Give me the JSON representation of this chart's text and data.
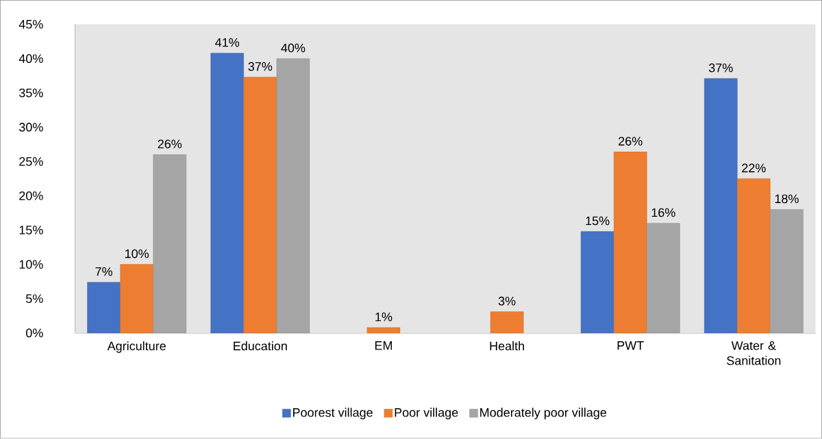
{
  "chart_data": {
    "type": "bar",
    "categories": [
      "Agriculture",
      "Education",
      "EM",
      "Health",
      "PWT",
      "Water & Sanitation"
    ],
    "series": [
      {
        "name": "Poorest village",
        "color": "#4472c4",
        "values": [
          7.4,
          40.8,
          null,
          null,
          14.8,
          37.1
        ],
        "value_labels": [
          "7%",
          "41%",
          null,
          null,
          "15%",
          "37%"
        ]
      },
      {
        "name": "Poor village",
        "color": "#ed7d31",
        "values": [
          10.0,
          37.3,
          0.8,
          3.1,
          26.4,
          22.5
        ],
        "value_labels": [
          "10%",
          "37%",
          "1%",
          "3%",
          "26%",
          "22%"
        ]
      },
      {
        "name": "Moderately poor village",
        "color": "#a5a5a5",
        "values": [
          26.0,
          40.0,
          null,
          null,
          16.0,
          18.0
        ],
        "value_labels": [
          "26%",
          "40%",
          null,
          null,
          "16%",
          "18%"
        ]
      }
    ],
    "ylim": [
      0,
      45
    ],
    "yticks": [
      {
        "value": 0,
        "label": "0%"
      },
      {
        "value": 5,
        "label": "5%"
      },
      {
        "value": 10,
        "label": "10%"
      },
      {
        "value": 15,
        "label": "15%"
      },
      {
        "value": 20,
        "label": "20%"
      },
      {
        "value": 25,
        "label": "25%"
      },
      {
        "value": 30,
        "label": "30%"
      },
      {
        "value": 35,
        "label": "35%"
      },
      {
        "value": 40,
        "label": "40%"
      },
      {
        "value": 45,
        "label": "45%"
      }
    ],
    "grid": false,
    "legend": "bottom"
  }
}
